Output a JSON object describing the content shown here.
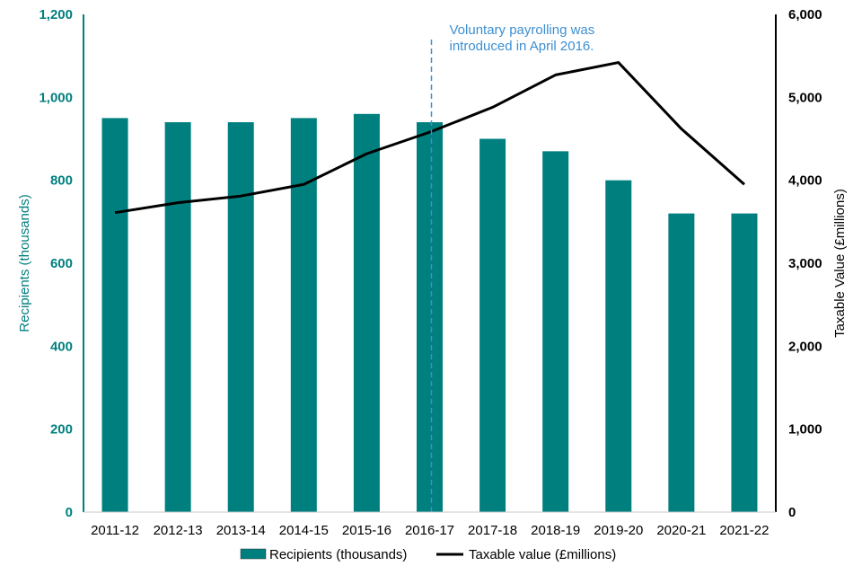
{
  "chart_data": {
    "type": "bar",
    "categories": [
      "2011-12",
      "2012-13",
      "2013-14",
      "2014-15",
      "2015-16",
      "2016-17",
      "2017-18",
      "2018-19",
      "2019-20",
      "2020-21",
      "2021-22"
    ],
    "series": [
      {
        "name": "Recipients (thousands)",
        "type": "bar",
        "axis": "left",
        "values": [
          950,
          940,
          940,
          950,
          960,
          940,
          900,
          870,
          800,
          720,
          720
        ]
      },
      {
        "name": "Taxable value (£millions)",
        "type": "line",
        "axis": "right",
        "values": [
          3610,
          3730,
          3810,
          3950,
          4320,
          4580,
          4880,
          5270,
          5420,
          4620,
          3950
        ]
      }
    ],
    "ylabel_left": "Recipients (thousands)",
    "ylabel_right": "Taxable Value (£millions)",
    "ylim_left": [
      0,
      1200
    ],
    "ylim_right": [
      0,
      6000
    ],
    "yticks_left": [
      "0",
      "200",
      "400",
      "600",
      "800",
      "1,000",
      "1,200"
    ],
    "yticks_right": [
      "0",
      "1,000",
      "2,000",
      "3,000",
      "4,000",
      "5,000",
      "6,000"
    ],
    "annotation": {
      "line1": "Voluntary payrolling was",
      "line2": "introduced in April 2016.",
      "at_category": "2016-17"
    },
    "grid": false,
    "legend_position": "bottom",
    "colors": {
      "bar": "#007f7f",
      "line": "#000000",
      "left_axis": "#007f7f",
      "annotation": "#3d8fd1"
    }
  }
}
